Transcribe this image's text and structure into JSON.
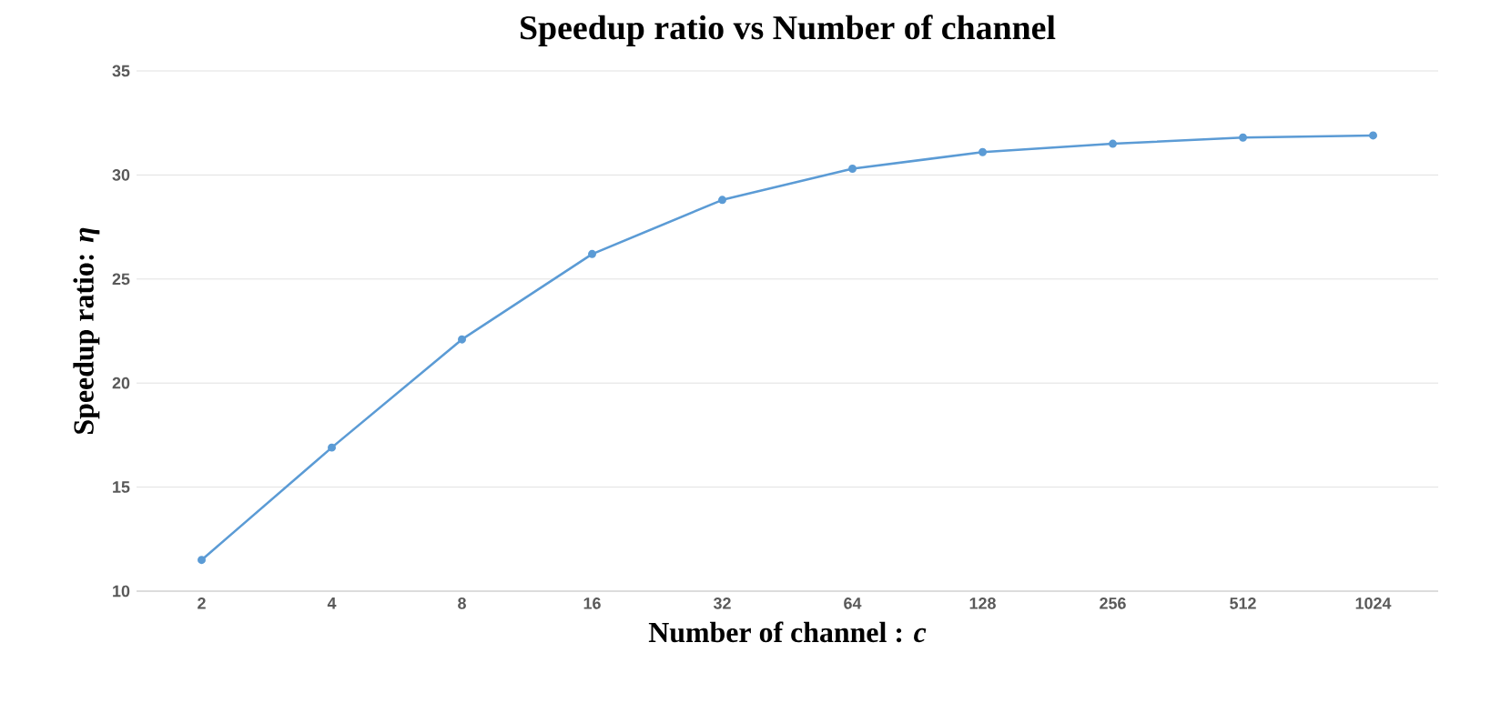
{
  "chart_data": {
    "type": "line",
    "title": "Speedup ratio vs Number of channel",
    "xlabel": "Number of channel : *c*",
    "ylabel": "Speedup ratio: *η*",
    "categories": [
      "2",
      "4",
      "8",
      "16",
      "32",
      "64",
      "128",
      "256",
      "512",
      "1024"
    ],
    "series": [
      {
        "color": "#5b9bd5",
        "values": [
          11.5,
          16.9,
          22.1,
          26.2,
          28.8,
          30.3,
          31.1,
          31.5,
          31.8,
          31.9
        ]
      }
    ],
    "ylim": [
      10,
      35
    ],
    "yticks": [
      10,
      15,
      20,
      25,
      30,
      35
    ],
    "grid": "y",
    "marker": "circle",
    "line_style": "solid"
  }
}
